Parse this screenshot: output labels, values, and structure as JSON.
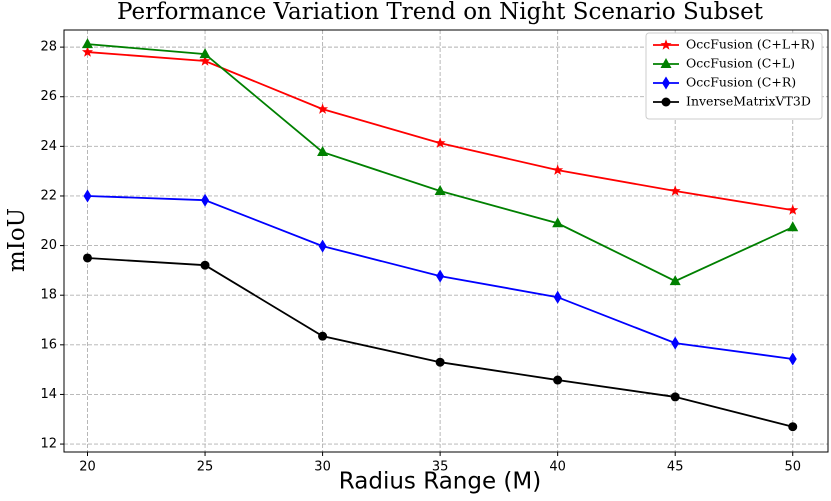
{
  "chart_data": {
    "type": "line",
    "title": "Performance Variation Trend on Night Scenario Subset",
    "x_label": "Radius Range (M)",
    "y_label": "mIoU",
    "x": [
      20,
      25,
      30,
      35,
      40,
      45,
      50
    ],
    "series": [
      {
        "name": "OccFusion (C+L+R)",
        "color": "#ff0000",
        "marker": "star",
        "values": [
          27.8,
          27.44,
          25.5,
          24.13,
          23.04,
          22.2,
          21.43
        ]
      },
      {
        "name": "OccFusion (C+L)",
        "color": "#008000",
        "marker": "triangle",
        "values": [
          28.12,
          27.72,
          23.77,
          22.2,
          20.9,
          18.57,
          20.74
        ]
      },
      {
        "name": "OccFusion (C+R)",
        "color": "#0000ff",
        "marker": "thin-diamond",
        "values": [
          22.0,
          21.83,
          19.98,
          18.77,
          17.92,
          16.07,
          15.43
        ]
      },
      {
        "name": "InverseMatrixVT3D",
        "color": "#000000",
        "marker": "circle",
        "values": [
          19.5,
          19.21,
          16.35,
          15.3,
          14.58,
          13.9,
          12.7
        ]
      }
    ],
    "xlim": [
      19,
      51.5
    ],
    "ylim": [
      11.68,
      28.69
    ],
    "xticks": [
      20,
      25,
      30,
      35,
      40,
      45,
      50
    ],
    "yticks": [
      12,
      14,
      16,
      18,
      20,
      22,
      24,
      26,
      28
    ],
    "grid": true,
    "legend": "upper right"
  }
}
